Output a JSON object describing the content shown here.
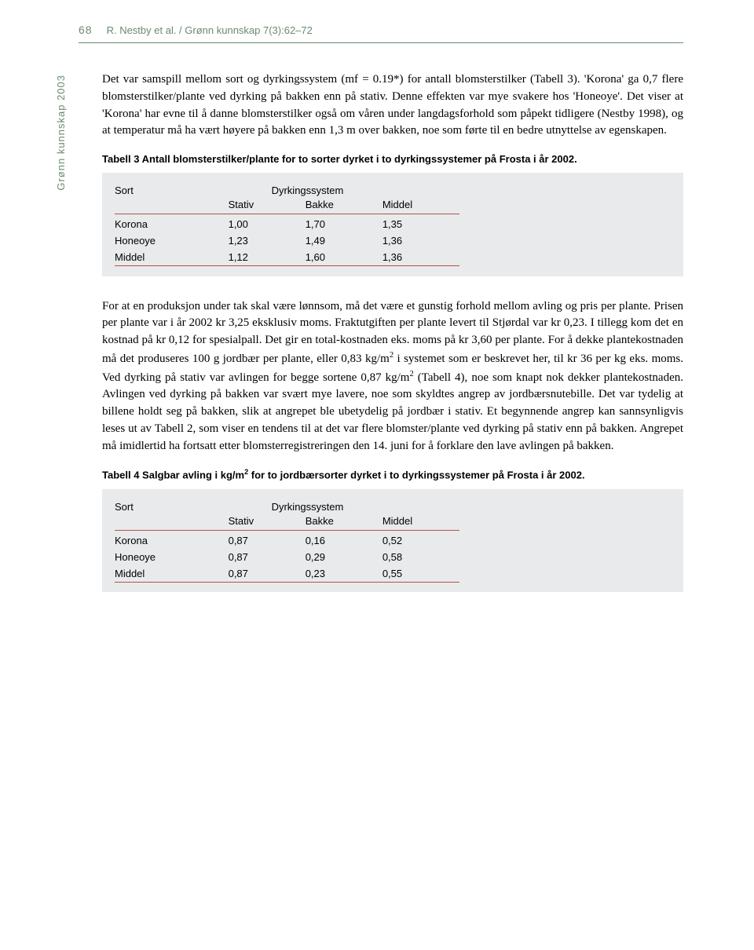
{
  "header": {
    "page_number": "68",
    "running_title": "R. Nestby et al. / Grønn kunnskap 7(3):62–72",
    "rule_color": "#6b8a71"
  },
  "sidebar": {
    "label": "Grønn kunnskap 2003",
    "color": "#6b8a71"
  },
  "paragraph1": "Det var samspill mellom sort og dyrkingssystem (mf = 0.19*) for antall blomsterstilker (Tabell 3). 'Korona' ga 0,7 flere blomsterstilker/plante ved dyrking på bakken enn på stativ. Denne effekten var mye svakere hos 'Honeoye'. Det viser at 'Korona' har evne til å danne blomsterstilker også om våren under langdagsforhold som påpekt tidligere (Nestby 1998), og at temperatur må ha vært høyere på bakken enn 1,3 m over bakken, noe som førte til en bedre utnyttelse av egenskapen.",
  "table3": {
    "caption": "Tabell 3 Antall blomsterstilker/plante for to sorter dyrket i to dyrkingssystemer på Frosta i år 2002.",
    "col_header_sort": "Sort",
    "col_header_system": "Dyrkingssystem",
    "sub_headers": [
      "Stativ",
      "Bakke",
      "Middel"
    ],
    "rows": [
      {
        "sort": "Korona",
        "stativ": "1,00",
        "bakke": "1,70",
        "middel": "1,35"
      },
      {
        "sort": "Honeoye",
        "stativ": "1,23",
        "bakke": "1,49",
        "middel": "1,36"
      },
      {
        "sort": "Middel",
        "stativ": "1,12",
        "bakke": "1,60",
        "middel": "1,36"
      }
    ],
    "background_color": "#e8eaeb",
    "rule_color": "#b5534e",
    "font_size_pt": 10
  },
  "paragraph2_pre": "For at en produksjon under tak skal være lønnsom, må det være et gunstig forhold mellom avling og pris per plante. Prisen per plante var i år 2002 kr 3,25 eksklusiv moms. Fraktutgiften per plante levert til Stjørdal var kr 0,23. I tillegg kom det en kostnad på kr 0,12 for spesialpall. Det gir en total-kostnaden eks. moms på kr 3,60 per plante. For å dekke plantekostnaden må det produseres 100 g jordbær per plante, eller 0,83 kg/m",
  "paragraph2_mid": " i systemet som er beskrevet her, til kr 36 per kg eks. moms. Ved dyrking på stativ var avlingen for begge sortene 0,87 kg/m",
  "paragraph2_post": " (Tabell 4), noe som knapt nok dekker plantekostnaden. Avlingen ved dyrking på bakken var svært mye lavere, noe som skyldtes angrep av jordbærsnutebille. Det var tydelig at billene holdt seg på bakken, slik at angrepet ble ubetydelig på jordbær i stativ. Et begynnende angrep kan sannsynligvis leses ut av Tabell 2, som viser en tendens til at det var flere blomster/plante ved dyrking på stativ enn på bakken. Angrepet må imidlertid ha fortsatt etter blomsterregistreringen den 14. juni for å forklare den lave avlingen på bakken.",
  "table4": {
    "caption_pre": "Tabell 4 Salgbar avling i kg/m",
    "caption_post": " for to jordbærsorter dyrket i to dyrkingssystemer på Frosta i år 2002.",
    "col_header_sort": "Sort",
    "col_header_system": "Dyrkingssystem",
    "sub_headers": [
      "Stativ",
      "Bakke",
      "Middel"
    ],
    "rows": [
      {
        "sort": "Korona",
        "stativ": "0,87",
        "bakke": "0,16",
        "middel": "0,52"
      },
      {
        "sort": "Honeoye",
        "stativ": "0,87",
        "bakke": "0,29",
        "middel": "0,58"
      },
      {
        "sort": "Middel",
        "stativ": "0,87",
        "bakke": "0,23",
        "middel": "0,55"
      }
    ],
    "background_color": "#e8eaeb",
    "rule_color": "#b5534e",
    "font_size_pt": 10
  },
  "colors": {
    "text": "#000000",
    "accent_green": "#6b8a71",
    "table_rule": "#b5534e",
    "table_bg": "#e8eaeb",
    "page_bg": "#ffffff"
  }
}
